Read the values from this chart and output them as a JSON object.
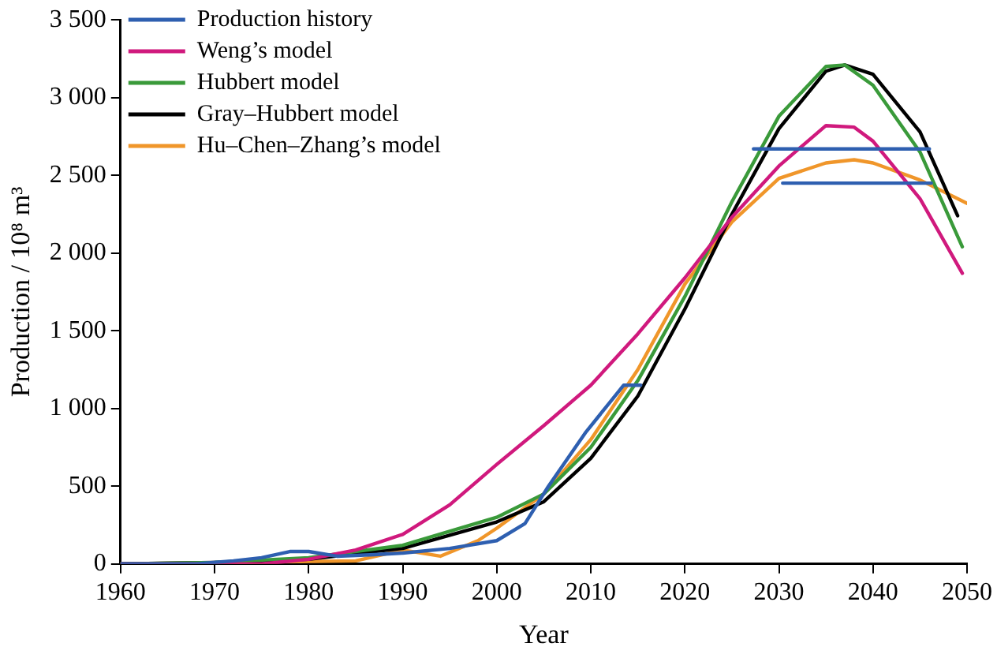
{
  "chart_data": {
    "type": "line",
    "xlabel": "Year",
    "ylabel": "Production / 10⁸ m³",
    "xlim": [
      1960,
      2050
    ],
    "xticks": [
      1960,
      1970,
      1980,
      1990,
      2000,
      2010,
      2020,
      2030,
      2040,
      2050
    ],
    "ylim": [
      0,
      3500
    ],
    "yticks": [
      0,
      500,
      {
        "value": 1000,
        "label": "1 000"
      },
      {
        "value": 1500,
        "label": "1 500"
      },
      {
        "value": 2000,
        "label": "2 000"
      },
      {
        "value": 2500,
        "label": "2 500"
      },
      {
        "value": 3000,
        "label": "3 000"
      },
      {
        "value": 3500,
        "label": "3 500"
      }
    ],
    "grid": false,
    "legend": "top left",
    "marker": "none",
    "line_style": "solid",
    "series": [
      {
        "name": "Production history",
        "color": "#2e5fb0",
        "x": [
          1960,
          1968,
          1972,
          1975,
          1978,
          1980,
          1983,
          1987,
          1990,
          1995,
          2000,
          2003,
          2005.5,
          2009.5,
          2013.5,
          2015.3
        ],
        "values": [
          0,
          0,
          20,
          40,
          80,
          80,
          50,
          60,
          70,
          100,
          150,
          260,
          500,
          850,
          1150,
          1150
        ]
      },
      {
        "color": "#2e5fb0",
        "x": [
          2027.3,
          2046
        ],
        "values": [
          2670,
          2670
        ]
      },
      {
        "color": "#2e5fb0",
        "x": [
          2030.4,
          2046.2
        ],
        "values": [
          2450,
          2450
        ]
      },
      {
        "name": "Weng’s model",
        "color": "#d0197d",
        "x": [
          1960,
          1975,
          1980,
          1985,
          1990,
          1995,
          2000,
          2005,
          2010,
          2015,
          2020,
          2025,
          2030,
          2035,
          2038,
          2040,
          2045,
          2049.5
        ],
        "values": [
          0,
          0,
          30,
          90,
          190,
          380,
          640,
          890,
          1150,
          1480,
          1840,
          2230,
          2560,
          2820,
          2810,
          2720,
          2350,
          1870
        ]
      },
      {
        "name": "Hubbert model",
        "color": "#3a9a3a",
        "x": [
          1960,
          1970,
          1980,
          1990,
          2000,
          2005,
          2010,
          2015,
          2020,
          2025,
          2030,
          2035,
          2037,
          2040,
          2045,
          2049.5
        ],
        "values": [
          0,
          10,
          40,
          120,
          300,
          450,
          750,
          1180,
          1720,
          2330,
          2880,
          3200,
          3210,
          3080,
          2650,
          2040
        ]
      },
      {
        "name": "Gray–Hubbert model",
        "color": "#000000",
        "x": [
          1960,
          1970,
          1980,
          1990,
          2000,
          2005,
          2010,
          2015,
          2020,
          2025,
          2030,
          2035,
          2037,
          2040,
          2045,
          2049
        ],
        "values": [
          0,
          10,
          30,
          100,
          270,
          400,
          680,
          1080,
          1640,
          2250,
          2800,
          3170,
          3210,
          3150,
          2780,
          2240
        ]
      },
      {
        "name": "Hu–Chen–Zhang’s model",
        "color": "#f0962a",
        "x": [
          1960,
          1985,
          1990,
          1994,
          1998,
          2000,
          2005,
          2010,
          2015,
          2020,
          2025,
          2030,
          2035,
          2038,
          2040,
          2045,
          2050
        ],
        "values": [
          0,
          20,
          90,
          50,
          150,
          230,
          450,
          800,
          1250,
          1800,
          2200,
          2480,
          2580,
          2600,
          2580,
          2470,
          2320
        ]
      }
    ]
  }
}
